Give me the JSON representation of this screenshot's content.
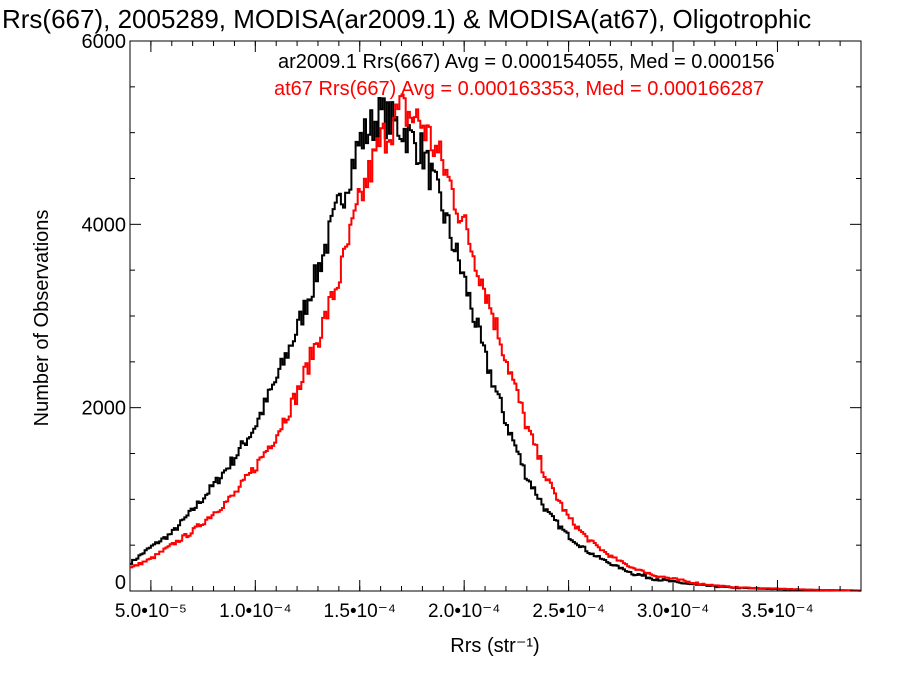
{
  "chart_data": {
    "type": "histogram",
    "title": "Rrs(667), 2005289, MODISA(ar2009.1) & MODISA(at67), Oligotrophic",
    "xlabel": "Rrs (str⁻¹)",
    "ylabel": "Number of Observations",
    "xlim": [
      4e-05,
      0.00039
    ],
    "ylim": [
      0,
      6000
    ],
    "x_ticks": [
      {
        "value": 5e-05,
        "label": "5.0•10⁻⁵"
      },
      {
        "value": 0.0001,
        "label": "1.0•10⁻⁴"
      },
      {
        "value": 0.00015,
        "label": "1.5•10⁻⁴"
      },
      {
        "value": 0.0002,
        "label": "2.0•10⁻⁴"
      },
      {
        "value": 0.00025,
        "label": "2.5•10⁻⁴"
      },
      {
        "value": 0.0003,
        "label": "3.0•10⁻⁴"
      },
      {
        "value": 0.00035,
        "label": "3.5•10⁻⁴"
      }
    ],
    "y_ticks": [
      {
        "value": 0,
        "label": "0"
      },
      {
        "value": 2000,
        "label": "2000"
      },
      {
        "value": 4000,
        "label": "4000"
      },
      {
        "value": 6000,
        "label": "6000"
      }
    ],
    "grid": false,
    "legend_position": "top-right",
    "series": [
      {
        "name": "ar2009.1",
        "color": "#000000",
        "legend_text": "ar2009.1 Rrs(667) Avg = 0.000154055, Med = 0.000156",
        "x": [
          4e-05,
          5e-05,
          6e-05,
          7e-05,
          8e-05,
          9e-05,
          0.0001,
          0.00011,
          0.00012,
          0.00013,
          0.00014,
          0.00015,
          0.00016,
          0.00017,
          0.00018,
          0.00019,
          0.0002,
          0.00021,
          0.00022,
          0.00023,
          0.00024,
          0.00025,
          0.00026,
          0.00027,
          0.00028,
          0.00029,
          0.0003,
          0.00031,
          0.00032,
          0.00033,
          0.00035,
          0.00037,
          0.00039
        ],
        "counts": [
          300,
          480,
          630,
          880,
          1150,
          1450,
          1800,
          2300,
          2850,
          3500,
          4200,
          4900,
          5200,
          5050,
          4800,
          4150,
          3400,
          2550,
          1850,
          1250,
          850,
          600,
          420,
          300,
          200,
          140,
          100,
          70,
          50,
          35,
          20,
          10,
          5
        ]
      },
      {
        "name": "at67",
        "color": "#ff0000",
        "legend_text": "at67 Rrs(667) Avg = 0.000163353, Med = 0.000166287",
        "x": [
          4e-05,
          5e-05,
          6e-05,
          7e-05,
          8e-05,
          9e-05,
          0.0001,
          0.00011,
          0.00012,
          0.00013,
          0.00014,
          0.00015,
          0.00016,
          0.00017,
          0.00018,
          0.00019,
          0.0002,
          0.00021,
          0.00022,
          0.00023,
          0.00024,
          0.00025,
          0.00026,
          0.00027,
          0.00028,
          0.00029,
          0.0003,
          0.00031,
          0.00032,
          0.00033,
          0.00035,
          0.00037,
          0.00039
        ],
        "counts": [
          250,
          350,
          500,
          650,
          850,
          1050,
          1350,
          1700,
          2150,
          2750,
          3400,
          4250,
          4900,
          5250,
          5100,
          4650,
          4000,
          3300,
          2550,
          1800,
          1200,
          800,
          550,
          380,
          260,
          180,
          130,
          90,
          60,
          40,
          25,
          12,
          5
        ]
      }
    ]
  }
}
